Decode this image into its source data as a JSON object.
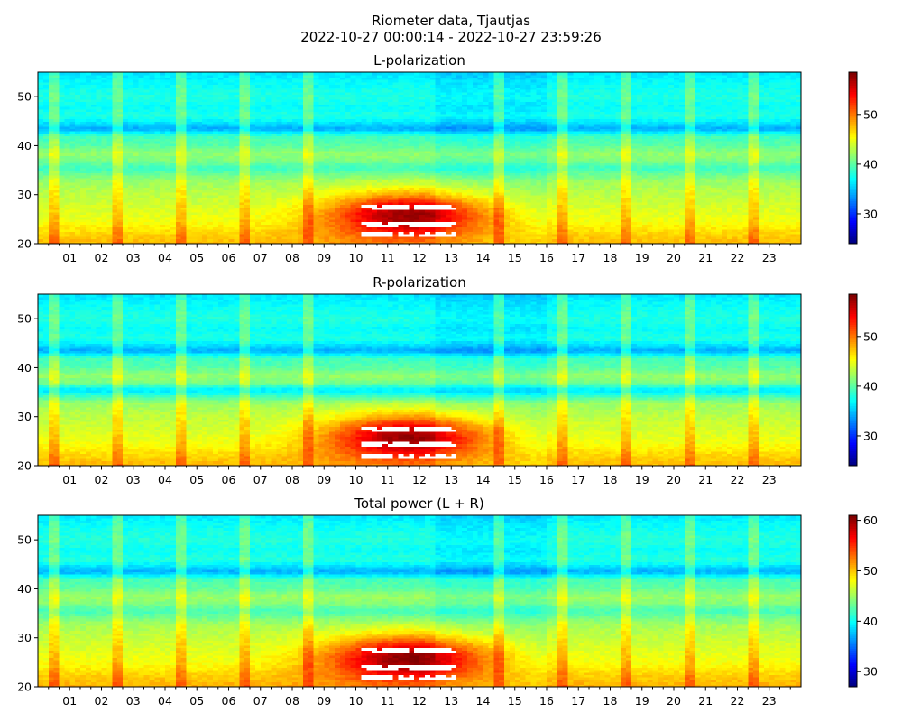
{
  "figure": {
    "title_line1": "Riometer data, Tjautjas",
    "title_line2": "2022-10-27 00:00:14 - 2022-10-27 23:59:26"
  },
  "chart_data": [
    {
      "type": "heatmap",
      "title": "L-polarization",
      "x_unit": "hour of day",
      "x_range": [
        0,
        24
      ],
      "x_tick_labels": [
        "01",
        "02",
        "03",
        "04",
        "05",
        "06",
        "07",
        "08",
        "09",
        "10",
        "11",
        "12",
        "13",
        "14",
        "15",
        "16",
        "17",
        "18",
        "19",
        "20",
        "21",
        "22",
        "23"
      ],
      "y_range": [
        20,
        55
      ],
      "y_ticks": [
        20,
        30,
        40,
        50
      ],
      "colorbar": {
        "range": [
          24,
          58.5
        ],
        "ticks": [
          30,
          40,
          50
        ],
        "colormap": "jet"
      },
      "saturated_above": 58.5,
      "bands": [
        [
          20,
          48
        ],
        [
          22,
          47
        ],
        [
          25,
          45
        ],
        [
          28,
          44
        ],
        [
          31,
          43
        ],
        [
          33,
          42
        ],
        [
          35.5,
          39
        ],
        [
          37,
          41
        ],
        [
          38.5,
          42
        ],
        [
          40,
          40
        ],
        [
          42,
          39
        ],
        [
          43.5,
          34
        ],
        [
          46,
          38
        ],
        [
          48,
          37
        ],
        [
          50,
          38
        ],
        [
          53,
          37
        ],
        [
          55,
          36
        ]
      ],
      "daytime_enhancement": {
        "center_hour": 11.7,
        "width_hours": 2.6,
        "center_y": 26,
        "peak": 13
      },
      "saturated_rows_y": [
        22,
        24,
        27.5
      ]
    },
    {
      "type": "heatmap",
      "title": "R-polarization",
      "x_unit": "hour of day",
      "x_range": [
        0,
        24
      ],
      "x_tick_labels": [
        "01",
        "02",
        "03",
        "04",
        "05",
        "06",
        "07",
        "08",
        "09",
        "10",
        "11",
        "12",
        "13",
        "14",
        "15",
        "16",
        "17",
        "18",
        "19",
        "20",
        "21",
        "22",
        "23"
      ],
      "y_range": [
        20,
        55
      ],
      "y_ticks": [
        20,
        30,
        40,
        50
      ],
      "colorbar": {
        "range": [
          24,
          58.5
        ],
        "ticks": [
          30,
          40,
          50
        ],
        "colormap": "jet"
      },
      "saturated_above": 58.5,
      "bands": [
        [
          20,
          48
        ],
        [
          22,
          47
        ],
        [
          25,
          45
        ],
        [
          28,
          44
        ],
        [
          31,
          43
        ],
        [
          33,
          42
        ],
        [
          35.5,
          36
        ],
        [
          37,
          41
        ],
        [
          38.5,
          42
        ],
        [
          40,
          40
        ],
        [
          42,
          39
        ],
        [
          43.5,
          34
        ],
        [
          46,
          38
        ],
        [
          48,
          37
        ],
        [
          50,
          38
        ],
        [
          53,
          37
        ],
        [
          55,
          36
        ]
      ],
      "daytime_enhancement": {
        "center_hour": 11.7,
        "width_hours": 2.6,
        "center_y": 26,
        "peak": 13
      },
      "saturated_rows_y": [
        22,
        24.5,
        27.5
      ]
    },
    {
      "type": "heatmap",
      "title": "Total power (L + R)",
      "x_unit": "hour of day",
      "x_range": [
        0,
        24
      ],
      "x_tick_labels": [
        "01",
        "02",
        "03",
        "04",
        "05",
        "06",
        "07",
        "08",
        "09",
        "10",
        "11",
        "12",
        "13",
        "14",
        "15",
        "16",
        "17",
        "18",
        "19",
        "20",
        "21",
        "22",
        "23"
      ],
      "y_range": [
        20,
        55
      ],
      "y_ticks": [
        20,
        30,
        40,
        50
      ],
      "colorbar": {
        "range": [
          27,
          61
        ],
        "ticks": [
          30,
          40,
          50,
          60
        ],
        "colormap": "jet"
      },
      "saturated_above": 61,
      "bands": [
        [
          20,
          51
        ],
        [
          22,
          50
        ],
        [
          25,
          48
        ],
        [
          28,
          47
        ],
        [
          31,
          46
        ],
        [
          33,
          45
        ],
        [
          35.5,
          42
        ],
        [
          37,
          44
        ],
        [
          38.5,
          45
        ],
        [
          40,
          43
        ],
        [
          42,
          42
        ],
        [
          43.5,
          37
        ],
        [
          46,
          41
        ],
        [
          48,
          40
        ],
        [
          50,
          41
        ],
        [
          53,
          40
        ],
        [
          55,
          39
        ]
      ],
      "daytime_enhancement": {
        "center_hour": 11.7,
        "width_hours": 2.6,
        "center_y": 26,
        "peak": 13
      },
      "saturated_rows_y": [
        22,
        24,
        27.5
      ]
    }
  ]
}
